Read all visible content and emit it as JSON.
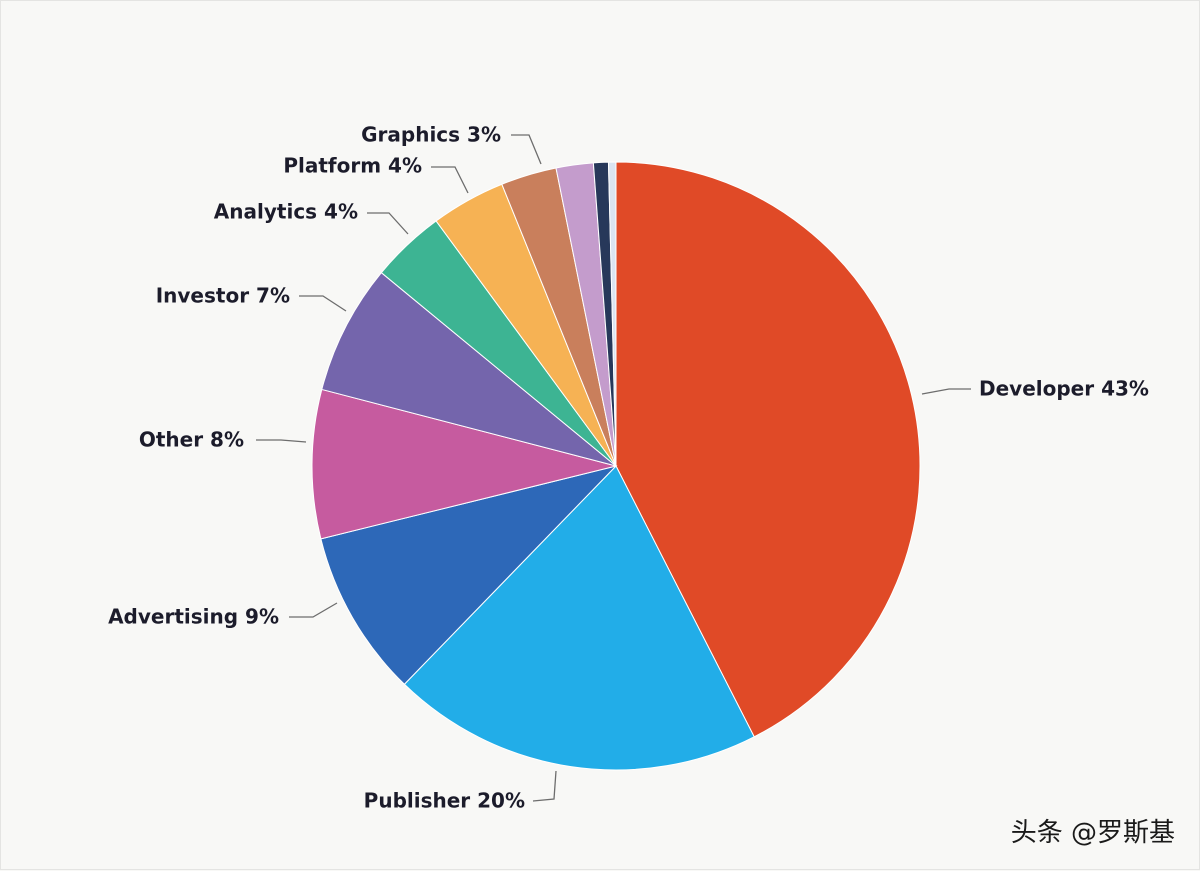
{
  "chart_data": {
    "type": "pie",
    "title": "",
    "start_angle_deg": 0,
    "direction": "clockwise",
    "slices": [
      {
        "label": "Developer 43%",
        "category": "Developer",
        "value": 43,
        "color": "#e04a27"
      },
      {
        "label": "Publisher 20%",
        "category": "Publisher",
        "value": 20,
        "color": "#22ade8"
      },
      {
        "label": "Advertising 9%",
        "category": "Advertising",
        "value": 9,
        "color": "#2d68b8"
      },
      {
        "label": "Other 8%",
        "category": "Other",
        "value": 8,
        "color": "#c65b9f"
      },
      {
        "label": "Investor 7%",
        "category": "Investor",
        "value": 7,
        "color": "#7465ac"
      },
      {
        "label": "Analytics 4%",
        "category": "Analytics",
        "value": 4,
        "color": "#3db493"
      },
      {
        "label": "Platform 4%",
        "category": "Platform",
        "value": 4,
        "color": "#f6b254"
      },
      {
        "label": "Graphics 3%",
        "category": "Graphics",
        "value": 3,
        "color": "#c97f5c"
      },
      {
        "label": "",
        "category": "",
        "value": 2,
        "color": "#c49ccc"
      },
      {
        "label": "",
        "category": "",
        "value": 0.8,
        "color": "#27385a"
      },
      {
        "label": "",
        "category": "",
        "value": 0.4,
        "color": "#dbe4f1"
      }
    ]
  },
  "watermark": "头条 @罗斯基"
}
